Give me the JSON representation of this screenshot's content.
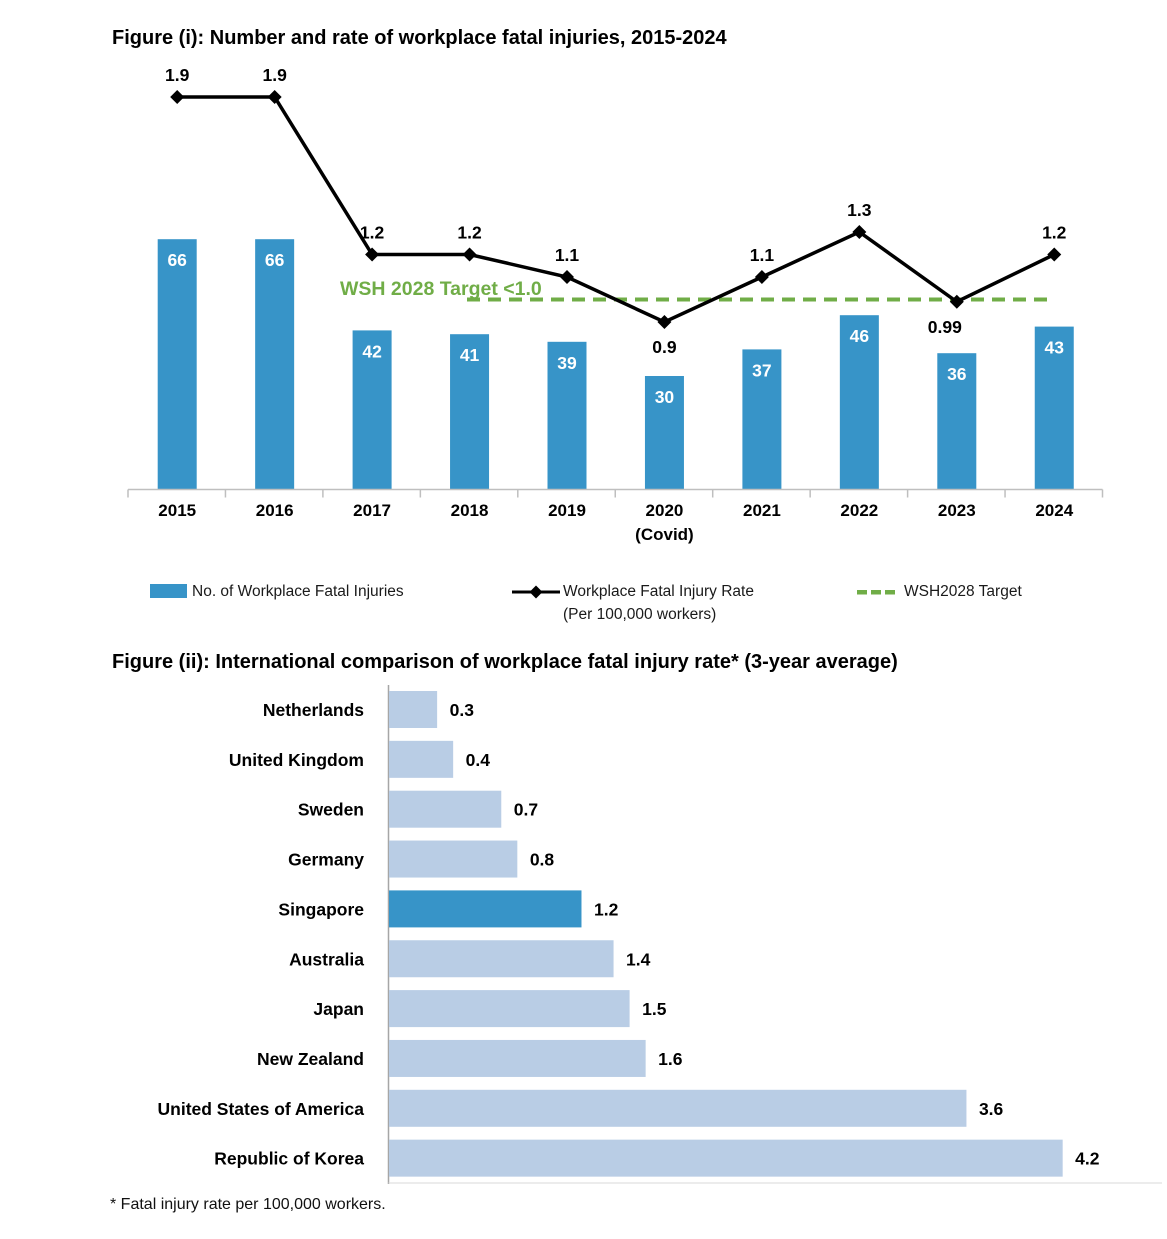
{
  "footnote": "* Fatal injury rate per 100,000 workers.",
  "colors": {
    "bar_blue": "#3794C8",
    "light_blue": "#B9CDE5",
    "green": "#70AD47",
    "axis_gray": "#BFBFBF",
    "axis_gray2": "#A6A6A6"
  },
  "chart_data": [
    {
      "type": "bar",
      "combo": "bar+line",
      "title": "Figure (i): Number and rate of workplace fatal injuries, 2015-2024",
      "categories": [
        "2015",
        "2016",
        "2017",
        "2018",
        "2019",
        "2020",
        "2021",
        "2022",
        "2023",
        "2024"
      ],
      "sublabels": [
        "",
        "",
        "",
        "",
        "",
        "(Covid)",
        "",
        "",
        "",
        ""
      ],
      "series": [
        {
          "name": "No. of Workplace Fatal Injuries",
          "type": "bar",
          "values": [
            66,
            66,
            42,
            41,
            39,
            30,
            37,
            46,
            36,
            43
          ]
        },
        {
          "name": "Workplace Fatal Injury Rate (Per 100,000 workers)",
          "type": "line",
          "values": [
            1.9,
            1.9,
            1.2,
            1.2,
            1.1,
            0.9,
            1.1,
            1.3,
            0.99,
            1.2
          ],
          "labels": [
            "1.9",
            "1.9",
            "1.2",
            "1.2",
            "1.1",
            "0.9",
            "1.1",
            "1.3",
            "0.99",
            "1.2"
          ]
        },
        {
          "name": "WSH2028 Target",
          "type": "dashed-target",
          "value": 1.0
        }
      ],
      "target": {
        "value": 1.0,
        "label": "WSH 2028 Target <1.0"
      },
      "legend_position": "bottom",
      "legend": [
        {
          "label": "No. of Workplace Fatal Injuries"
        },
        {
          "label": "Workplace Fatal Injury Rate",
          "sublabel": "(Per 100,000 workers)"
        },
        {
          "label": "WSH2028 Target"
        }
      ]
    },
    {
      "type": "bar",
      "orientation": "horizontal",
      "title": "Figure (ii): International comparison of workplace fatal injury rate* (3-year average)",
      "categories": [
        "Netherlands",
        "United Kingdom",
        "Sweden",
        "Germany",
        "Singapore",
        "Australia",
        "Japan",
        "New Zealand",
        "United States of America",
        "Republic of Korea"
      ],
      "values": [
        0.3,
        0.4,
        0.7,
        0.8,
        1.2,
        1.4,
        1.5,
        1.6,
        3.6,
        4.2
      ],
      "labels": [
        "0.3",
        "0.4",
        "0.7",
        "0.8",
        "1.2",
        "1.4",
        "1.5",
        "1.6",
        "3.6",
        "4.2"
      ],
      "highlight_category": "Singapore",
      "xlim": [
        0,
        4.5
      ],
      "grid": false
    }
  ]
}
